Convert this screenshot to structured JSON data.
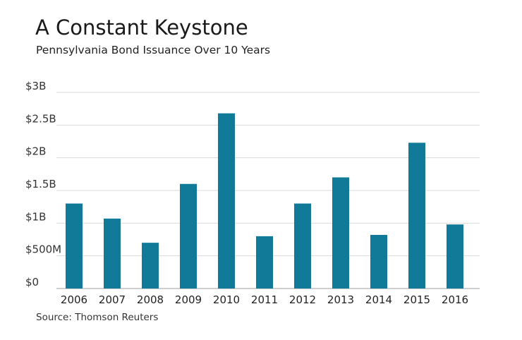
{
  "title": "A Constant Keystone",
  "subtitle": "Pennsylvania Bond Issuance Over 10 Years",
  "source": "Source: Thomson Reuters",
  "colors": {
    "bar": "#117a99",
    "grid": "#d9d9d9",
    "axis": "#bdbdbd"
  },
  "chart_data": {
    "type": "bar",
    "title": "A Constant Keystone",
    "subtitle": "Pennsylvania Bond Issuance Over 10 Years",
    "xlabel": "",
    "ylabel": "",
    "categories": [
      "2006",
      "2007",
      "2008",
      "2009",
      "2010",
      "2011",
      "2012",
      "2013",
      "2014",
      "2015",
      "2016"
    ],
    "values": [
      1300000000,
      1070000000,
      700000000,
      1600000000,
      2680000000,
      800000000,
      1300000000,
      1700000000,
      820000000,
      2230000000,
      980000000
    ],
    "ylim": [
      0,
      3000000000
    ],
    "yticks": [
      0,
      500000000,
      1000000000,
      1500000000,
      2000000000,
      2500000000,
      3000000000
    ],
    "ytick_labels": [
      "$0",
      "$500M",
      "$1B",
      "$1.5B",
      "$2B",
      "$2.5B",
      "$3B"
    ],
    "grid": true,
    "legend": "none"
  }
}
